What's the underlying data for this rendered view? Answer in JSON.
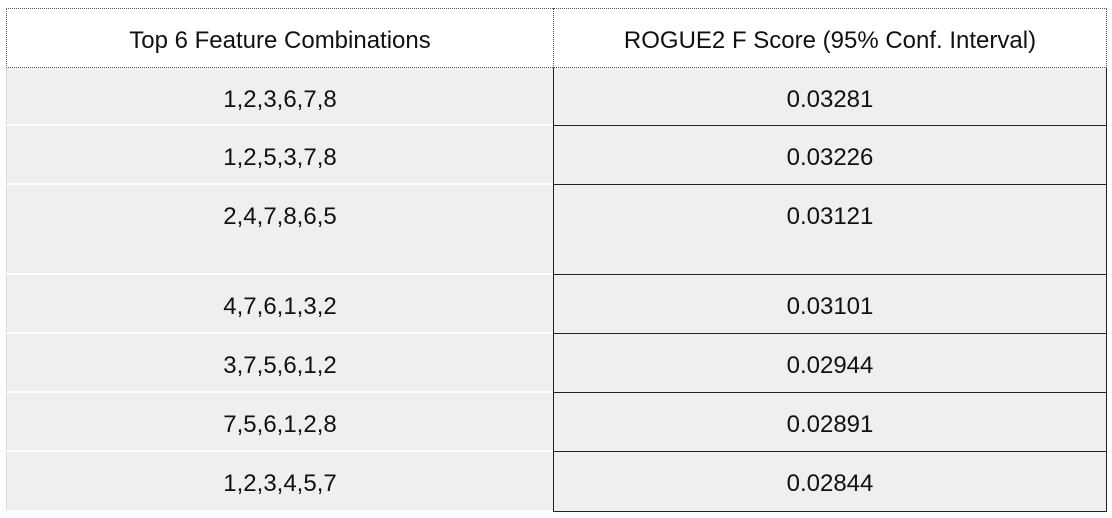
{
  "table": {
    "headers": [
      "Top 6 Feature Combinations",
      "ROGUE2 F Score (95% Conf. Interval)"
    ],
    "rows": [
      [
        "1,2,3,6,7,8",
        0.03281
      ],
      [
        "1,2,5,3,7,8",
        0.03226
      ],
      [
        "2,4,7,8,6,5",
        0.03121
      ],
      [
        "4,7,6,1,3,2",
        0.03101
      ],
      [
        "3,7,5,6,1,2",
        0.02944
      ],
      [
        "7,5,6,1,2,8",
        0.02891
      ],
      [
        "1,2,3,4,5,7",
        0.02844
      ]
    ]
  }
}
